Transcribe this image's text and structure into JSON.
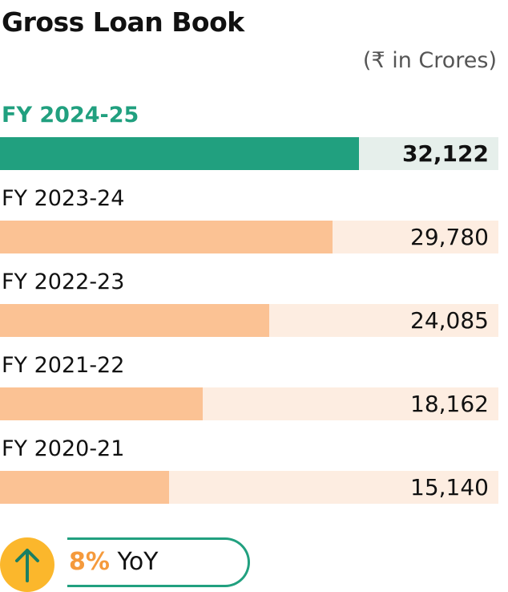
{
  "title": "Gross Loan Book",
  "unit": "(₹ in Crores)",
  "colors": {
    "current_fill": "#21a07f",
    "current_track": "#e6efeb",
    "past_fill": "#fbc294",
    "past_track": "#fdede1",
    "current_label": "#21a07f",
    "yoy_accent": "#f59a3c",
    "arrow_circle": "#fbb72c"
  },
  "chart_data": {
    "type": "bar",
    "orientation": "horizontal",
    "categories": [
      "FY 2024-25",
      "FY 2023-24",
      "FY 2022-23",
      "FY 2021-22",
      "FY 2020-21"
    ],
    "values": [
      32122,
      29780,
      24085,
      18162,
      15140
    ],
    "value_labels": [
      "32,122",
      "29,780",
      "24,085",
      "18,162",
      "15,140"
    ],
    "highlighted": "FY 2024-25",
    "title": "Gross Loan Book",
    "unit": "(₹ in Crores)",
    "grid": false
  },
  "yoy": {
    "icon": "arrow-up-icon",
    "percent": "8%",
    "label": "YoY"
  }
}
